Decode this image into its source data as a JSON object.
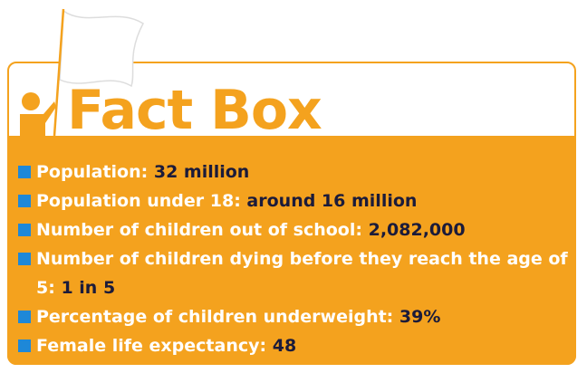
{
  "header": {
    "title": "Fact Box"
  },
  "items": [
    {
      "label": "Population:",
      "value": "32 million"
    },
    {
      "label": "Population under 18:",
      "value": "around 16 million"
    },
    {
      "label": "Number of children out of school:",
      "value": "2,082,000"
    },
    {
      "label": "Number of children dying before they reach the age of 5:",
      "value": "1 in 5"
    },
    {
      "label": "Percentage of children underweight:",
      "value": "39%"
    },
    {
      "label": "Female life expectancy:",
      "value": "48"
    }
  ]
}
